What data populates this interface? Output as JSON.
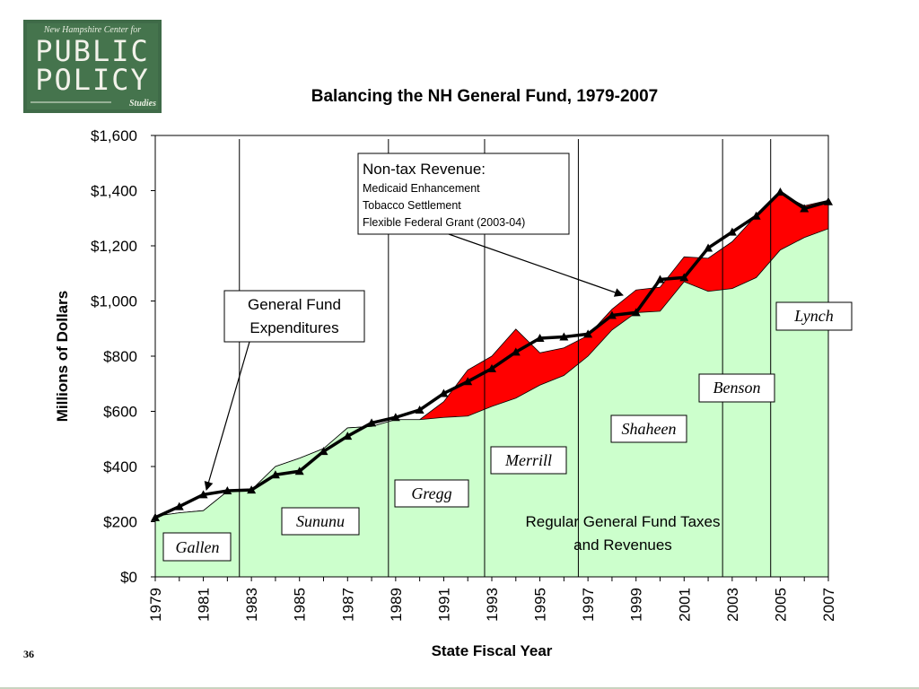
{
  "logo": {
    "line1": "New Hampshire Center for",
    "line2": "PUBLIC",
    "line3": "POLICY",
    "line4": "Studies",
    "color": "#3f6b48"
  },
  "page_number": "36",
  "colors": {
    "taxes_fill": "#ccffcc",
    "nontax_fill": "#ff0000",
    "expenditure_line": "#000000"
  },
  "chart_data": {
    "type": "area",
    "title": "Balancing the NH General Fund, 1979-2007",
    "xlabel": "State Fiscal Year",
    "ylabel": "Millions of Dollars",
    "ylim": [
      0,
      1600
    ],
    "xlim": [
      1979,
      2007
    ],
    "yticks": [
      0,
      200,
      400,
      600,
      800,
      1000,
      1200,
      1400,
      1600
    ],
    "ytick_labels": [
      "$0",
      "$200",
      "$400",
      "$600",
      "$800",
      "$1,000",
      "$1,200",
      "$1,400",
      "$1,600"
    ],
    "xtick_labels": [
      "1979",
      "1981",
      "1983",
      "1985",
      "1987",
      "1989",
      "1991",
      "1993",
      "1995",
      "1997",
      "1999",
      "2001",
      "2003",
      "2005",
      "2007"
    ],
    "x": [
      1979,
      1980,
      1981,
      1982,
      1983,
      1984,
      1985,
      1986,
      1987,
      1988,
      1989,
      1990,
      1991,
      1992,
      1993,
      1994,
      1995,
      1996,
      1997,
      1998,
      1999,
      2000,
      2001,
      2002,
      2003,
      2004,
      2005,
      2006,
      2007
    ],
    "series": [
      {
        "values": [
          220,
          232,
          240,
          310,
          315,
          400,
          430,
          465,
          540,
          545,
          570,
          570,
          578,
          583,
          618,
          648,
          695,
          730,
          800,
          895,
          958,
          963,
          1070,
          1035,
          1045,
          1085,
          1185,
          1230,
          1262
        ]
      },
      {
        "values": [
          220,
          232,
          240,
          310,
          315,
          400,
          430,
          465,
          540,
          545,
          570,
          570,
          635,
          750,
          800,
          898,
          812,
          830,
          875,
          970,
          1040,
          1050,
          1160,
          1155,
          1215,
          1310,
          1390,
          1345,
          1365
        ]
      },
      {
        "values": [
          215,
          255,
          298,
          312,
          315,
          370,
          383,
          455,
          510,
          558,
          578,
          605,
          665,
          708,
          755,
          815,
          865,
          870,
          880,
          948,
          958,
          1078,
          1085,
          1192,
          1250,
          1308,
          1395,
          1335,
          1360
        ]
      }
    ],
    "governor_dividers": [
      1982.5,
      1988.7,
      1992.7,
      1996.6,
      2002.6,
      2004.6
    ],
    "governors": [
      "Gallen",
      "Sununu",
      "Gregg",
      "Merrill",
      "Shaheen",
      "Benson",
      "Lynch"
    ],
    "annotations": {
      "general_fund": [
        "General Fund",
        "Expenditures"
      ],
      "nontax_title": "Non-tax Revenue:",
      "nontax_items": [
        "Medicaid Enhancement",
        "Tobacco Settlement",
        "Flexible Federal Grant (2003-04)"
      ],
      "taxes": [
        "Regular General Fund Taxes",
        "and Revenues"
      ]
    }
  }
}
